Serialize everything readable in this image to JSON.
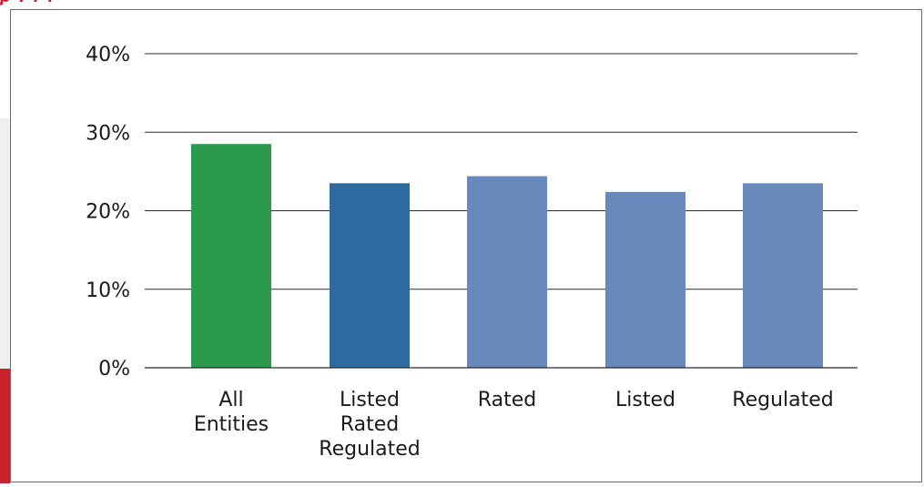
{
  "chart_data": {
    "type": "bar",
    "categories": [
      [
        "All",
        "Entities"
      ],
      [
        "Listed",
        "Rated",
        "Regulated"
      ],
      [
        "Rated"
      ],
      [
        "Listed"
      ],
      [
        "Regulated"
      ]
    ],
    "values": [
      28.5,
      23.5,
      24.4,
      22.4,
      23.5
    ],
    "bar_colors": [
      "#2c9a4c",
      "#2d6a9f",
      "#6889bb",
      "#6889bb",
      "#6889bb"
    ],
    "ylim": [
      0,
      40
    ],
    "yticks": [
      0,
      10,
      20,
      30,
      40
    ],
    "ytick_labels": [
      "0%",
      "10%",
      "20%",
      "30%",
      "40%"
    ],
    "grid": true,
    "title": "",
    "xlabel": "",
    "ylabel": ""
  }
}
